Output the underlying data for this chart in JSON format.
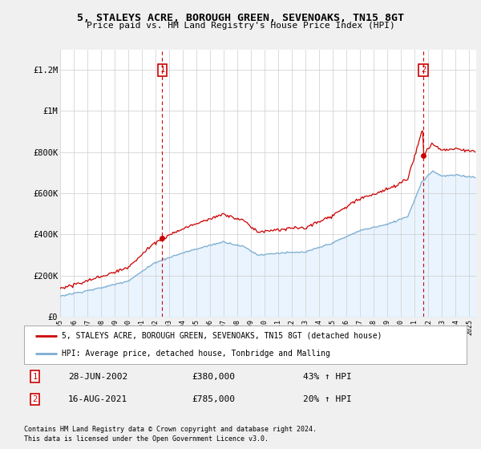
{
  "title": "5, STALEYS ACRE, BOROUGH GREEN, SEVENOAKS, TN15 8GT",
  "subtitle": "Price paid vs. HM Land Registry's House Price Index (HPI)",
  "ylim": [
    0,
    1300000
  ],
  "yticks": [
    0,
    200000,
    400000,
    600000,
    800000,
    1000000,
    1200000
  ],
  "ytick_labels": [
    "£0",
    "£200K",
    "£400K",
    "£600K",
    "£800K",
    "£1M",
    "£1.2M"
  ],
  "legend_line1": "5, STALEYS ACRE, BOROUGH GREEN, SEVENOAKS, TN15 8GT (detached house)",
  "legend_line2": "HPI: Average price, detached house, Tonbridge and Malling",
  "marker1_date": "28-JUN-2002",
  "marker1_price": "£380,000",
  "marker1_hpi": "43% ↑ HPI",
  "marker2_date": "16-AUG-2021",
  "marker2_price": "£785,000",
  "marker2_hpi": "20% ↑ HPI",
  "footnote1": "Contains HM Land Registry data © Crown copyright and database right 2024.",
  "footnote2": "This data is licensed under the Open Government Licence v3.0.",
  "vline1_x": 2002.49,
  "vline2_x": 2021.62,
  "sale1_y": 380000,
  "sale2_y": 785000,
  "line_color_red": "#cc0000",
  "line_color_blue": "#7aadcf",
  "shade_color": "#ddeeff",
  "bg_color": "#f0f0f0",
  "plot_bg": "#ffffff",
  "grid_color": "#cccccc",
  "xlim_start": 1995.0,
  "xlim_end": 2025.5
}
